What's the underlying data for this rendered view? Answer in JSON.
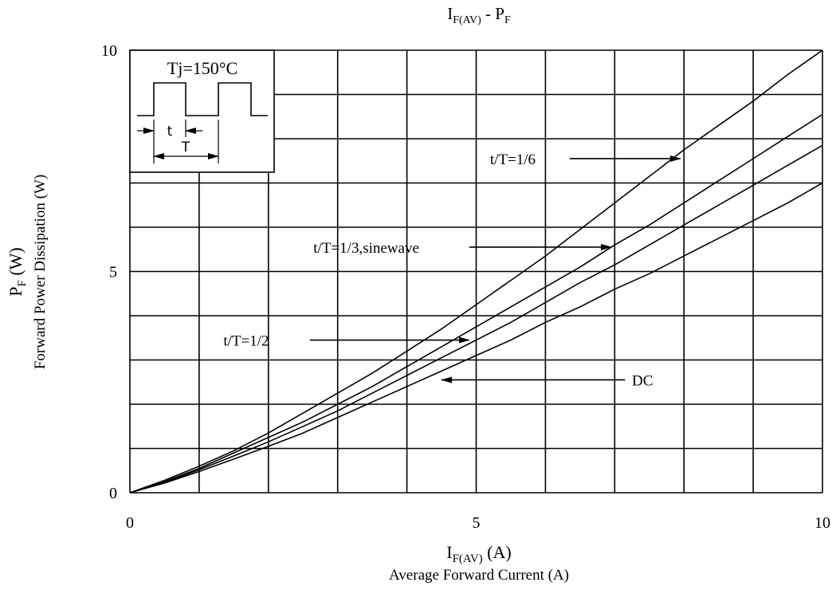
{
  "chart_data": {
    "type": "line",
    "title": {
      "main": "I",
      "sub": "F(AV)",
      "sep": " - P",
      "sub2": "F"
    },
    "xlabel": {
      "main": "I",
      "sub": "F(AV)",
      "unit": " (A)",
      "desc": "Average Forward Current (A)"
    },
    "ylabel": {
      "main": "P",
      "sub": "F",
      "unit": " (W)",
      "desc": "Forward Power Dissipation (W)"
    },
    "xlim": [
      0,
      10
    ],
    "ylim": [
      0,
      10
    ],
    "xticks": [
      0,
      5,
      10
    ],
    "yticks": [
      0,
      5,
      10
    ],
    "xtick_labels": [
      "0",
      "5",
      "10"
    ],
    "ytick_labels": [
      "0",
      "5",
      "10"
    ],
    "grid": true,
    "grid_step": 1,
    "series": [
      {
        "name": "t/T=1/6",
        "x": [
          0,
          0.5,
          1,
          1.5,
          2,
          2.5,
          3,
          3.5,
          4,
          4.5,
          5,
          5.5,
          6,
          6.5,
          7,
          7.5,
          8,
          8.5,
          9,
          9.5,
          10
        ],
        "y": [
          0,
          0.28,
          0.6,
          0.95,
          1.35,
          1.8,
          2.25,
          2.7,
          3.2,
          3.7,
          4.25,
          4.8,
          5.35,
          5.95,
          6.55,
          7.15,
          7.75,
          8.3,
          8.85,
          9.45,
          10.0
        ]
      },
      {
        "name": "t/T=1/3,sinewave",
        "x": [
          0,
          0.5,
          1,
          1.5,
          2,
          2.5,
          3,
          3.5,
          4,
          4.5,
          5,
          5.5,
          6,
          6.5,
          7,
          7.5,
          8,
          8.5,
          9,
          9.5,
          10
        ],
        "y": [
          0,
          0.25,
          0.55,
          0.9,
          1.25,
          1.6,
          2.0,
          2.4,
          2.85,
          3.3,
          3.75,
          4.2,
          4.65,
          5.1,
          5.6,
          6.05,
          6.55,
          7.05,
          7.55,
          8.05,
          8.55
        ]
      },
      {
        "name": "t/T=1/2",
        "x": [
          0,
          0.5,
          1,
          1.5,
          2,
          2.5,
          3,
          3.5,
          4,
          4.5,
          5,
          5.5,
          6,
          6.5,
          7,
          7.5,
          8,
          8.5,
          9,
          9.5,
          10
        ],
        "y": [
          0,
          0.24,
          0.52,
          0.83,
          1.15,
          1.5,
          1.85,
          2.25,
          2.65,
          3.05,
          3.45,
          3.85,
          4.3,
          4.75,
          5.15,
          5.6,
          6.05,
          6.5,
          6.95,
          7.4,
          7.85
        ]
      },
      {
        "name": "DC",
        "x": [
          0,
          0.5,
          1,
          1.5,
          2,
          2.5,
          3,
          3.5,
          4,
          4.5,
          5,
          5.5,
          6,
          6.5,
          7,
          7.5,
          8,
          8.5,
          9,
          9.5,
          10
        ],
        "y": [
          0,
          0.22,
          0.48,
          0.76,
          1.05,
          1.35,
          1.7,
          2.05,
          2.4,
          2.75,
          3.1,
          3.45,
          3.85,
          4.2,
          4.6,
          4.95,
          5.35,
          5.75,
          6.15,
          6.55,
          7.0
        ]
      }
    ],
    "annotations": [
      {
        "text": "t/T=1/6",
        "label_x": 5.2,
        "label_y": 7.55,
        "from_x": 6.35,
        "to_x": 7.95,
        "arrow_y": 7.55,
        "label_anchor": "start"
      },
      {
        "text": "t/T=1/3,sinewave",
        "label_x": 2.65,
        "label_y": 5.55,
        "from_x": 4.9,
        "to_x": 6.95,
        "arrow_y": 5.55,
        "label_anchor": "start"
      },
      {
        "text": "t/T=1/2",
        "label_x": 1.35,
        "label_y": 3.45,
        "from_x": 2.6,
        "to_x": 4.9,
        "arrow_y": 3.45,
        "label_anchor": "start"
      },
      {
        "text": "DC",
        "label_x": 7.25,
        "label_y": 2.55,
        "from_x": 7.15,
        "to_x": 4.5,
        "arrow_y": 2.55,
        "label_anchor": "start"
      }
    ],
    "inset": {
      "label": "Tj=150°C",
      "t_label": "t",
      "T_label": "T"
    }
  }
}
